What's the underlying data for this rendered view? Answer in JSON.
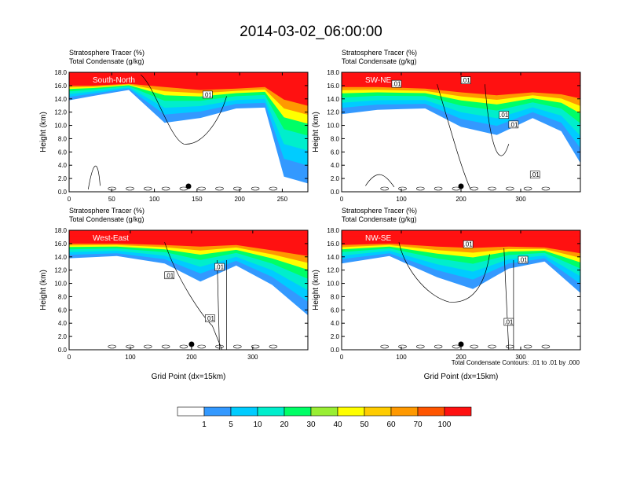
{
  "figure": {
    "title": "2014-03-02_06:00:00",
    "footnote": "Total Condensate Contours: .01 to .01 by .000"
  },
  "colorbar": {
    "labels": [
      "1",
      "5",
      "10",
      "20",
      "30",
      "40",
      "50",
      "60",
      "70",
      "100"
    ],
    "colors": [
      "#ffffff",
      "#3399ff",
      "#00ccff",
      "#00eecc",
      "#00ff66",
      "#99ee33",
      "#ffff00",
      "#ffcc00",
      "#ff9900",
      "#ff5500",
      "#ff1111"
    ]
  },
  "chart_data": [
    {
      "type": "heatmap",
      "name_label": "South-North",
      "title_lines": [
        "Stratosphere Tracer   (%)",
        "Total Condensate   (g/kg)"
      ],
      "xlabel": "",
      "ylabel": "Height (km)",
      "xlim": [
        0,
        280
      ],
      "ylim": [
        0,
        18
      ],
      "xticks": [
        "0",
        "50",
        "100",
        "150",
        "200",
        "250"
      ],
      "yticks": [
        "0.0",
        "2.0",
        "4.0",
        "6.0",
        "8.0",
        "10.0",
        "12.0",
        "14.0",
        "16.0",
        "18.0"
      ],
      "contour_labels": [
        ".01"
      ],
      "marker_x": 140
    },
    {
      "type": "heatmap",
      "name_label": "SW-NE",
      "title_lines": [
        "Stratosphere Tracer   (%)",
        "Total Condensate   (g/kg)"
      ],
      "xlabel": "",
      "ylabel": "Height (km)",
      "xlim": [
        0,
        400
      ],
      "ylim": [
        0,
        18
      ],
      "xticks": [
        "0",
        "100",
        "200",
        "300"
      ],
      "yticks": [
        "0.0",
        "2.0",
        "4.0",
        "6.0",
        "8.0",
        "10.0",
        "12.0",
        "14.0",
        "16.0",
        "18.0"
      ],
      "contour_labels": [
        ".01",
        ".01",
        ".01",
        ".01",
        ".01"
      ],
      "marker_x": 200
    },
    {
      "type": "heatmap",
      "name_label": "West-East",
      "title_lines": [
        "Stratosphere Tracer   (%)",
        "Total Condensate   (g/kg)"
      ],
      "xlabel": "Grid Point (dx=15km)",
      "ylabel": "Height (km)",
      "xlim": [
        0,
        390
      ],
      "ylim": [
        0,
        18
      ],
      "xticks": [
        "0",
        "100",
        "200",
        "300"
      ],
      "yticks": [
        "0.0",
        "2.0",
        "4.0",
        "6.0",
        "8.0",
        "10.0",
        "12.0",
        "14.0",
        "16.0",
        "18.0"
      ],
      "contour_labels": [
        ".01",
        ".01",
        ".01"
      ],
      "marker_x": 200
    },
    {
      "type": "heatmap",
      "name_label": "NW-SE",
      "title_lines": [
        "Stratosphere Tracer   (%)",
        "Total Condensate   (g/kg)"
      ],
      "xlabel": "Grid Point (dx=15km)",
      "ylabel": "Height (km)",
      "xlim": [
        0,
        400
      ],
      "ylim": [
        0,
        18
      ],
      "xticks": [
        "0",
        "100",
        "200",
        "300"
      ],
      "yticks": [
        "0.0",
        "2.0",
        "4.0",
        "6.0",
        "8.0",
        "10.0",
        "12.0",
        "14.0",
        "16.0",
        "18.0"
      ],
      "contour_labels": [
        ".01",
        ".01",
        ".01"
      ],
      "marker_x": 200
    }
  ]
}
